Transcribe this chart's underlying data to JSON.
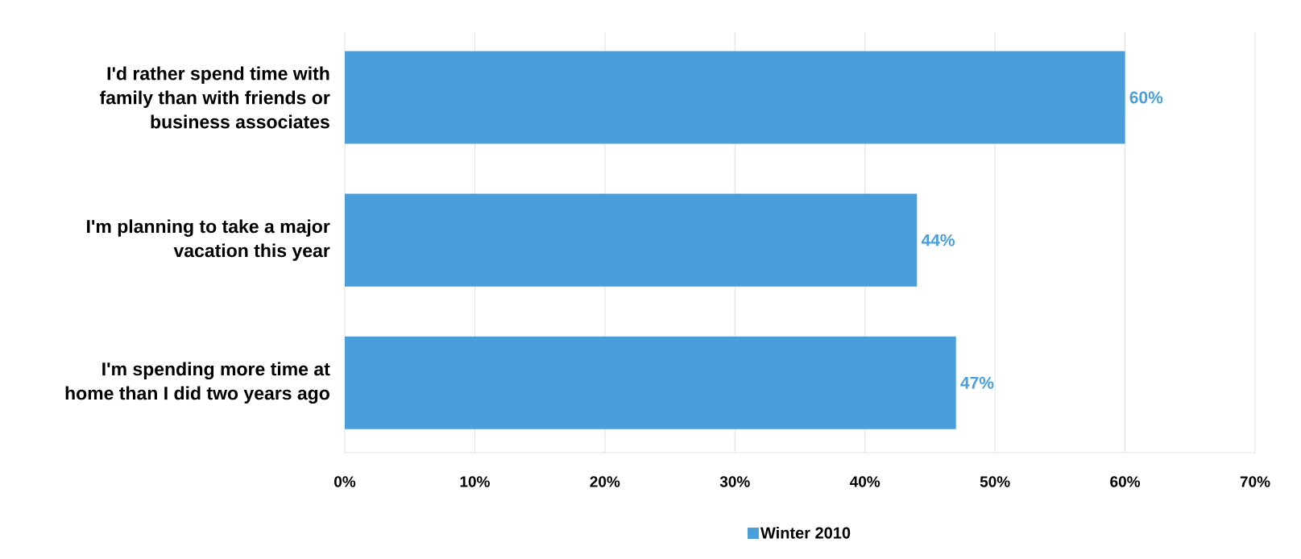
{
  "chart_data": {
    "type": "bar",
    "orientation": "horizontal",
    "categories": [
      "I'd rather spend time with family than with friends or business associates",
      "I'm planning to take a major vacation this year",
      "I'm spending more time at home than I did two years ago"
    ],
    "series": [
      {
        "name": "Winter 2010",
        "color": "#4a9fda",
        "values": [
          60,
          44,
          47
        ],
        "value_labels": [
          "60%",
          "44%",
          "47%"
        ]
      }
    ],
    "xlim": [
      0,
      70
    ],
    "xticks": [
      {
        "value": 0,
        "label": "0%"
      },
      {
        "value": 10,
        "label": "10%"
      },
      {
        "value": 20,
        "label": "20%"
      },
      {
        "value": 30,
        "label": "30%"
      },
      {
        "value": 40,
        "label": "40%"
      },
      {
        "value": 50,
        "label": "50%"
      },
      {
        "value": 60,
        "label": "60%"
      },
      {
        "value": 70,
        "label": "70%"
      }
    ],
    "grid": "x",
    "legend": "bottom"
  }
}
